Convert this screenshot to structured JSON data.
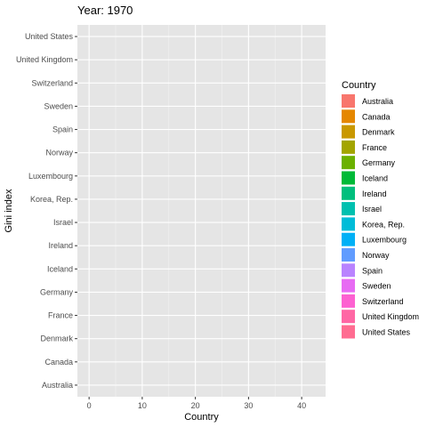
{
  "chart_data": {
    "type": "bar",
    "orientation": "horizontal",
    "title": "Year: 1970",
    "xlabel": "Country",
    "ylabel": "Gini index",
    "categories": [
      "Australia",
      "Canada",
      "Denmark",
      "France",
      "Germany",
      "Iceland",
      "Ireland",
      "Israel",
      "Korea, Rep.",
      "Luxembourg",
      "Norway",
      "Spain",
      "Sweden",
      "Switzerland",
      "United Kingdom",
      "United States"
    ],
    "values": [
      0,
      0,
      0,
      0,
      0,
      0,
      0,
      0,
      0,
      0,
      0,
      0,
      0,
      0,
      0,
      0
    ],
    "xlim": [
      -2.2,
      44.5
    ],
    "x_ticks": [
      0,
      10,
      20,
      30,
      40
    ],
    "grid": true,
    "background": "#e5e5e5",
    "legend": {
      "title": "Country",
      "placement": "right",
      "items": [
        {
          "label": "Australia",
          "color": "#F8766D"
        },
        {
          "label": "Canada",
          "color": "#E58700"
        },
        {
          "label": "Denmark",
          "color": "#C99800"
        },
        {
          "label": "France",
          "color": "#A3A500"
        },
        {
          "label": "Germany",
          "color": "#6BB100"
        },
        {
          "label": "Iceland",
          "color": "#00BA38"
        },
        {
          "label": "Ireland",
          "color": "#00BF7D"
        },
        {
          "label": "Israel",
          "color": "#00C0AF"
        },
        {
          "label": "Korea, Rep.",
          "color": "#00BCD8"
        },
        {
          "label": "Luxembourg",
          "color": "#00B0F6"
        },
        {
          "label": "Norway",
          "color": "#619CFF"
        },
        {
          "label": "Spain",
          "color": "#B983FF"
        },
        {
          "label": "Sweden",
          "color": "#E76BF3"
        },
        {
          "label": "Switzerland",
          "color": "#FD61D1"
        },
        {
          "label": "United Kingdom",
          "color": "#FF67A4"
        },
        {
          "label": "United States",
          "color": "#FF6C91"
        }
      ]
    }
  }
}
